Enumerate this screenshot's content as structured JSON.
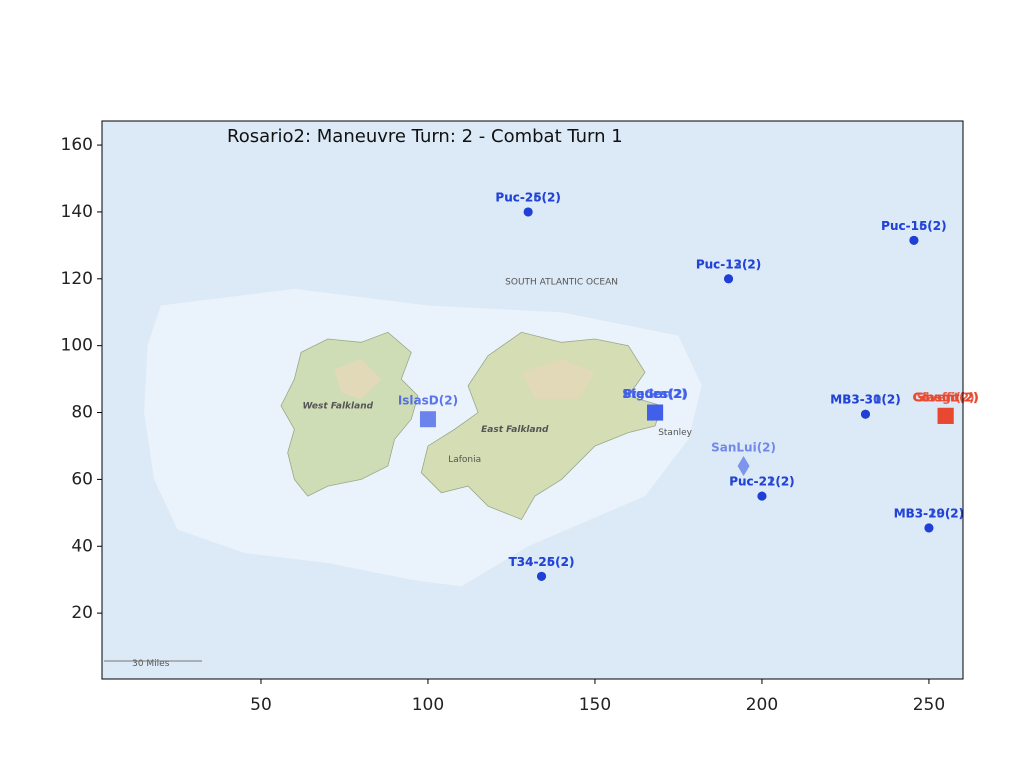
{
  "chart_data": {
    "type": "scatter",
    "title": "Rosario2: Maneuvre Turn:  2 - Combat Turn 1",
    "xlim": [
      2.4,
      260.2
    ],
    "ylim": [
      0.3,
      167.2
    ],
    "xticks": [
      50,
      100,
      150,
      200,
      250
    ],
    "yticks": [
      20,
      40,
      60,
      80,
      100,
      120,
      140,
      160
    ],
    "map_labels": [
      "SOUTH ATLANTIC OCEAN",
      "West Falkland",
      "East Falkland",
      "Lafonia",
      "Stanley",
      "30 Miles"
    ],
    "series": [
      {
        "marker": "circle",
        "color": "#1f3fd6",
        "x": [
          130,
          130,
          245.5,
          245.5,
          190,
          190,
          231,
          231,
          200,
          200,
          250,
          250,
          134,
          134
        ],
        "y": [
          140,
          140,
          131.5,
          131.5,
          120,
          120,
          79.5,
          79.5,
          55,
          55,
          45.5,
          45.5,
          31,
          31
        ],
        "labels": [
          "Puc-25(2)",
          "Puc-26(2)",
          "Puc-15(2)",
          "Puc-16(2)",
          "Puc-12(2)",
          "Puc-13(2)",
          "MB3-30(2)",
          "MB3-31(2)",
          "Puc-21(2)",
          "Puc-22(2)",
          "MB3-19(2)",
          "MB3-20(2)",
          "T34-25(2)",
          "T34-26(2)"
        ]
      },
      {
        "marker": "square",
        "color": "#3f5ee8",
        "x": [
          100,
          168,
          168,
          168
        ],
        "y": [
          78,
          80,
          80,
          80
        ],
        "labels": [
          "IslasD(2)",
          "Bigues(2)",
          "StaGor(2)",
          "Piedra(2)"
        ]
      },
      {
        "marker": "diamond",
        "color": "#5f78e8",
        "x": [
          194.5
        ],
        "y": [
          64
        ],
        "labels": [
          "SanLui(2)"
        ]
      },
      {
        "marker": "square",
        "color": "#e8452c",
        "x": [
          255,
          255,
          255
        ],
        "y": [
          79,
          79,
          79
        ],
        "labels": [
          "Covent(2)",
          "Sheffi(2)",
          "Glasgo(2)"
        ]
      }
    ]
  }
}
